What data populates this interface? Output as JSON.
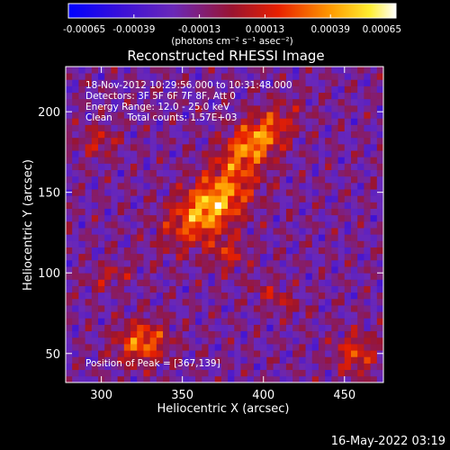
{
  "chart_data": {
    "type": "heatmap",
    "title": "Reconstructed RHESSI Image",
    "xlabel": "Heliocentric X (arcsec)",
    "ylabel": "Heliocentric Y (arcsec)",
    "xlim": [
      278,
      474
    ],
    "ylim": [
      32,
      228
    ],
    "xticks": [
      300,
      350,
      400,
      450
    ],
    "yticks": [
      50,
      100,
      150,
      200
    ],
    "colorbar": {
      "min": -0.00065,
      "max": 0.00065,
      "ticks": [
        "-0.00065",
        "-0.00039",
        "-0.00013",
        "0.00013",
        "0.00039",
        "0.00065"
      ],
      "unit_label": "(photons cm⁻² s⁻¹ asec⁻²)",
      "colormap": "rainbow-to-hot: blue, purple, red, orange, yellow, white"
    },
    "annotations": {
      "time_range": "18-Nov-2012 10:29:56.000 to 10:31:48.000",
      "detectors": "Detectors: 3F 5F 6F 7F 8F, Att 0",
      "energy": "Energy Range: 12.0 - 25.0 keV",
      "clean": "Clean     Total counts: 1.57E+03",
      "peak": "Position of Peak = [367,139]"
    },
    "peak_position": [
      367,
      139
    ],
    "sources": [
      {
        "x": 367,
        "y": 141,
        "sigma_x": 20,
        "sigma_y": 11,
        "rotation_deg": 38,
        "peak": 0.00065
      },
      {
        "x": 395,
        "y": 182,
        "sigma_x": 18,
        "sigma_y": 9,
        "rotation_deg": 40,
        "peak": 0.00055
      },
      {
        "x": 325,
        "y": 57,
        "sigma_x": 11,
        "sigma_y": 9,
        "rotation_deg": 10,
        "peak": 0.00048
      },
      {
        "x": 378,
        "y": 112,
        "sigma_x": 8,
        "sigma_y": 7,
        "rotation_deg": 0,
        "peak": 0.00028
      },
      {
        "x": 298,
        "y": 182,
        "sigma_x": 9,
        "sigma_y": 7,
        "rotation_deg": 0,
        "peak": 0.00024
      },
      {
        "x": 457,
        "y": 50,
        "sigma_x": 9,
        "sigma_y": 9,
        "rotation_deg": 0,
        "peak": 0.00035
      },
      {
        "x": 408,
        "y": 85,
        "sigma_x": 12,
        "sigma_y": 5,
        "rotation_deg": -30,
        "peak": 0.00022
      },
      {
        "x": 305,
        "y": 98,
        "sigma_x": 10,
        "sigma_y": 5,
        "rotation_deg": 20,
        "peak": 0.00022
      }
    ],
    "background": -0.00018
  },
  "footer": {
    "date": "16-May-2022 03:19"
  }
}
